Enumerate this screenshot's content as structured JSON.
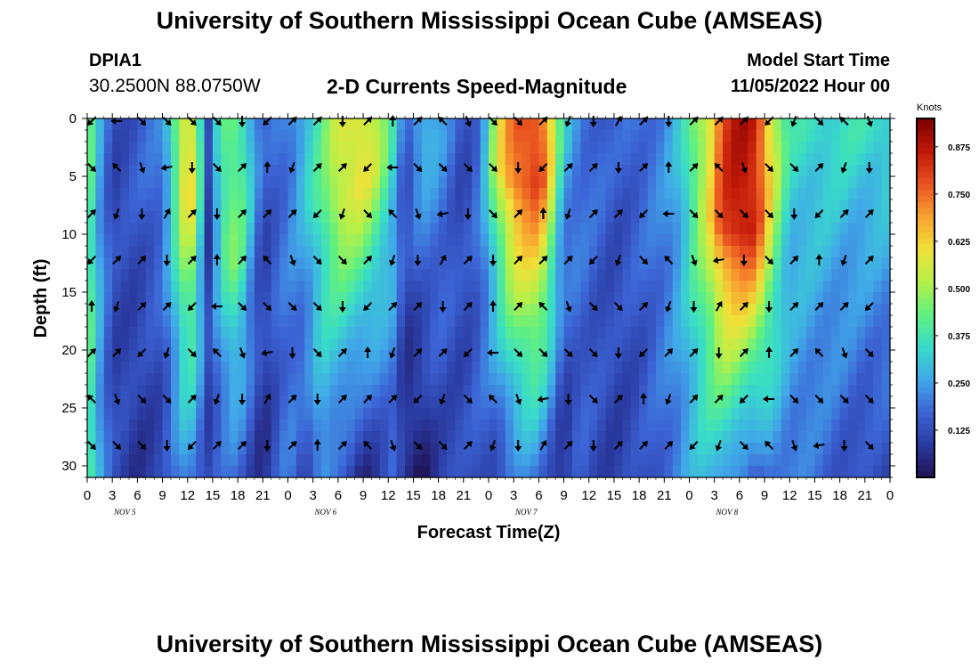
{
  "header": {
    "title": "University of Southern Mississippi Ocean Cube (AMSEAS)",
    "station": "DPIA1",
    "coords": "30.2500N  88.0750W",
    "subtitle": "2-D Currents Speed-Magnitude",
    "model_start_label": "Model Start Time",
    "model_start_value": "11/05/2022 Hour 00"
  },
  "footer": {
    "title": "University of Southern Mississippi Ocean Cube (AMSEAS)"
  },
  "chart_data": {
    "type": "heatmap",
    "title": "2-D Currents Speed-Magnitude",
    "xlabel": "Forecast Time(Z)",
    "ylabel": "Depth (ft)",
    "x_tick_labels": [
      "0",
      "3",
      "6",
      "9",
      "12",
      "15",
      "18",
      "21",
      "0",
      "3",
      "6",
      "9",
      "12",
      "15",
      "18",
      "21",
      "0",
      "3",
      "6",
      "9",
      "12",
      "15",
      "18",
      "21",
      "0",
      "3",
      "6",
      "9",
      "12",
      "15",
      "18",
      "21",
      "0"
    ],
    "day_labels": [
      "NOV 5",
      "NOV 6",
      "NOV 7",
      "NOV 8"
    ],
    "xlim_hours": [
      0,
      96
    ],
    "y_ticks": [
      0,
      5,
      10,
      15,
      20,
      25,
      30
    ],
    "ylim": [
      0,
      31
    ],
    "colorbar": {
      "units": "Knots",
      "ticks": [
        0.125,
        0.25,
        0.375,
        0.5,
        0.625,
        0.75,
        0.875
      ],
      "tick_labels": [
        "0.125",
        "0.250",
        "0.375",
        "0.500",
        "0.625",
        "0.750",
        "0.875"
      ],
      "range": [
        0,
        0.95
      ],
      "colors": [
        "#201050",
        "#2a3aa0",
        "#3c64d6",
        "#40a8e8",
        "#38dcc8",
        "#60f080",
        "#b8f048",
        "#f0e038",
        "#f8a030",
        "#e85020",
        "#c01808",
        "#7a0000"
      ]
    },
    "speed_profile": {
      "hours": [
        0,
        1,
        3,
        6,
        9,
        11,
        12,
        13,
        14.5,
        16,
        18,
        21,
        24,
        26,
        28,
        30,
        33,
        35,
        36.5,
        38,
        40,
        42,
        45,
        47,
        49,
        51,
        53,
        54,
        55,
        57,
        59,
        61,
        63,
        66,
        69,
        71,
        72,
        74,
        76,
        78,
        80,
        81,
        83,
        84,
        85,
        87,
        90,
        93,
        96
      ],
      "surface_knots": [
        0.5,
        0.3,
        0.12,
        0.15,
        0.2,
        0.5,
        0.65,
        0.5,
        0.1,
        0.4,
        0.45,
        0.15,
        0.2,
        0.3,
        0.4,
        0.55,
        0.6,
        0.5,
        0.35,
        0.15,
        0.3,
        0.25,
        0.12,
        0.2,
        0.55,
        0.75,
        0.8,
        0.8,
        0.7,
        0.3,
        0.2,
        0.18,
        0.15,
        0.18,
        0.22,
        0.3,
        0.4,
        0.55,
        0.8,
        0.88,
        0.85,
        0.7,
        0.45,
        0.35,
        0.35,
        0.35,
        0.35,
        0.35,
        0.35
      ],
      "bottom_knots": [
        0.45,
        0.3,
        0.12,
        0.08,
        0.1,
        0.2,
        0.25,
        0.2,
        0.12,
        0.15,
        0.18,
        0.06,
        0.2,
        0.12,
        0.25,
        0.15,
        0.05,
        0.1,
        0.15,
        0.05,
        0.02,
        0.1,
        0.12,
        0.15,
        0.12,
        0.18,
        0.22,
        0.2,
        0.15,
        0.06,
        0.15,
        0.12,
        0.1,
        0.12,
        0.18,
        0.22,
        0.25,
        0.3,
        0.28,
        0.2,
        0.12,
        0.2,
        0.22,
        0.2,
        0.2,
        0.18,
        0.15,
        0.12,
        0.12
      ],
      "core_depth_ft": [
        0,
        0,
        0,
        6,
        8,
        5,
        8,
        8,
        5,
        10,
        14,
        3,
        4,
        6,
        8,
        8,
        6,
        4,
        3,
        2,
        2,
        2,
        2,
        3,
        4,
        6,
        6,
        6,
        5,
        2,
        4,
        4,
        4,
        4,
        4,
        5,
        6,
        8,
        10,
        10,
        10,
        8,
        4,
        2,
        2,
        2,
        2,
        2,
        2
      ]
    },
    "arrow_times_hours": [
      0,
      3,
      6,
      9,
      12,
      15,
      18,
      21,
      24,
      27,
      30,
      33,
      36,
      39,
      42,
      45,
      48,
      51,
      54,
      57,
      60,
      63,
      66,
      69,
      72,
      75,
      78,
      81,
      84,
      87,
      90,
      93
    ],
    "arrow_depths_ft": [
      0,
      4,
      8,
      12,
      16,
      20,
      24,
      28
    ],
    "arrow_directions_deg": [
      225,
      225,
      315,
      270,
      200,
      160,
      135,
      135,
      135,
      135,
      315,
      135,
      135,
      160,
      45,
      135,
      260,
      200,
      180,
      180,
      180,
      225,
      135,
      30,
      45,
      45,
      45,
      45,
      0,
      180,
      180,
      200,
      45,
      45,
      45,
      45,
      0,
      45,
      45,
      45
    ]
  }
}
